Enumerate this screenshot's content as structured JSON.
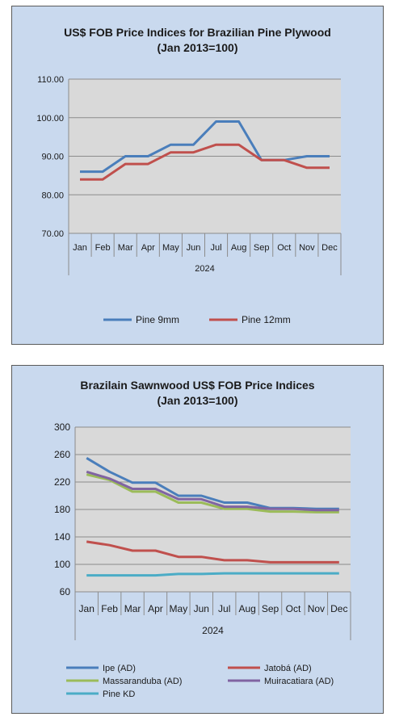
{
  "chart_data": [
    {
      "type": "line",
      "title": "US$ FOB Price Indices for Brazilian  Pine Plywood",
      "subtitle": "(Jan 2013=100)",
      "categories": [
        "Jan",
        "Feb",
        "Mar",
        "Apr",
        "May",
        "Jun",
        "Jul",
        "Aug",
        "Sep",
        "Oct",
        "Nov",
        "Dec"
      ],
      "category_group": "2024",
      "ylim": [
        70,
        110
      ],
      "yticks": [
        "70.00",
        "80.00",
        "90.00",
        "100.00",
        "110.00"
      ],
      "grid": true,
      "legend_position": "bottom",
      "series": [
        {
          "name": "Pine 9mm",
          "color": "#4a7ebb",
          "values": [
            86,
            86,
            90,
            90,
            93,
            93,
            99,
            99,
            89,
            89,
            90,
            90
          ]
        },
        {
          "name": "Pine 12mm",
          "color": "#c0504d",
          "values": [
            84,
            84,
            88,
            88,
            91,
            91,
            93,
            93,
            89,
            89,
            87,
            87
          ]
        }
      ]
    },
    {
      "type": "line",
      "title": "Brazilain Sawnwood US$ FOB Price Indices",
      "subtitle": "(Jan 2013=100)",
      "categories": [
        "Jan",
        "Feb",
        "Mar",
        "Apr",
        "May",
        "Jun",
        "Jul",
        "Aug",
        "Sep",
        "Oct",
        "Nov",
        "Dec"
      ],
      "category_group": "2024",
      "ylim": [
        60,
        300
      ],
      "yticks": [
        "60",
        "100",
        "140",
        "180",
        "220",
        "260",
        "300"
      ],
      "grid": true,
      "legend_position": "bottom",
      "series": [
        {
          "name": "Ipe (AD)",
          "color": "#4a7ebb",
          "values": [
            255,
            235,
            219,
            219,
            200,
            200,
            190,
            190,
            182,
            182,
            181,
            181
          ]
        },
        {
          "name": "Jatobá (AD)",
          "color": "#c0504d",
          "values": [
            133,
            128,
            120,
            120,
            111,
            111,
            106,
            106,
            103,
            103,
            103,
            103
          ]
        },
        {
          "name": "Massaranduba (AD)",
          "color": "#9bbb59",
          "values": [
            231,
            223,
            206,
            206,
            190,
            190,
            181,
            181,
            177,
            177,
            176,
            176
          ]
        },
        {
          "name": "Muiracatiara (AD)",
          "color": "#8064a2",
          "values": [
            235,
            225,
            210,
            210,
            195,
            195,
            184,
            184,
            181,
            181,
            179,
            179
          ]
        },
        {
          "name": "Pine KD",
          "color": "#4bacc6",
          "values": [
            84,
            84,
            84,
            84,
            86,
            86,
            87,
            87,
            87,
            87,
            87,
            87
          ]
        }
      ]
    }
  ]
}
